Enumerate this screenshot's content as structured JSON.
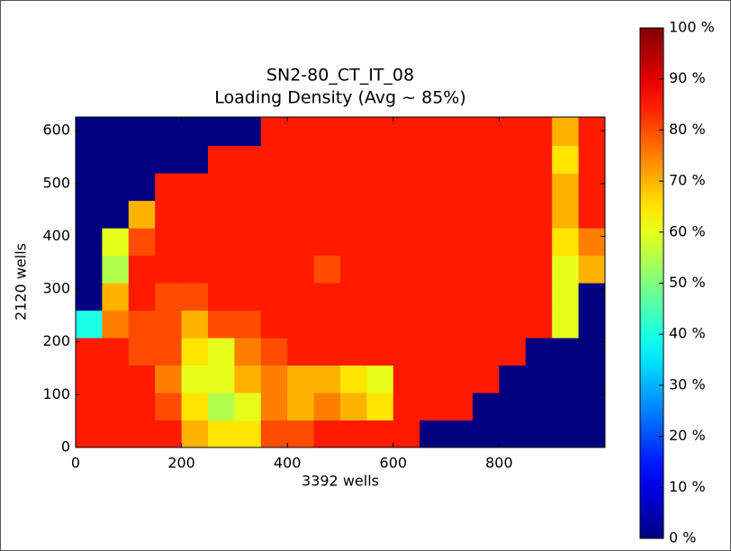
{
  "chart_data": {
    "type": "heatmap",
    "title": [
      "SN2-80_CT_IT_08",
      "Loading Density (Avg ~ 85%)"
    ],
    "x_label": "3392 wells",
    "y_label": "2120 wells",
    "colormap": "jet",
    "xlim": [
      0,
      1000
    ],
    "ylim": [
      0,
      626
    ],
    "xticks": [
      0,
      200,
      400,
      600,
      800
    ],
    "yticks": [
      0,
      100,
      200,
      300,
      400,
      500,
      600
    ],
    "x_bins": [
      0,
      50,
      100,
      150,
      200,
      250,
      300,
      350,
      400,
      450,
      500,
      550,
      600,
      650,
      700,
      750,
      800,
      850,
      900,
      950,
      1000
    ],
    "y_bins": [
      0,
      52,
      104,
      156,
      208,
      260,
      312,
      364,
      416,
      468,
      520,
      572,
      626
    ],
    "z": [
      [
        85,
        85,
        85,
        85,
        70,
        65,
        65,
        80,
        80,
        85,
        85,
        85,
        85,
        0,
        0,
        0,
        0,
        0,
        0,
        0
      ],
      [
        85,
        85,
        85,
        80,
        65,
        55,
        60,
        75,
        70,
        75,
        70,
        65,
        85,
        85,
        85,
        0,
        0,
        0,
        0,
        0
      ],
      [
        85,
        85,
        85,
        75,
        60,
        60,
        70,
        75,
        70,
        70,
        65,
        60,
        85,
        85,
        85,
        85,
        0,
        0,
        0,
        0
      ],
      [
        85,
        85,
        80,
        80,
        65,
        60,
        75,
        80,
        85,
        85,
        85,
        85,
        85,
        85,
        85,
        85,
        85,
        0,
        0,
        0
      ],
      [
        40,
        75,
        80,
        80,
        70,
        80,
        80,
        85,
        85,
        85,
        85,
        85,
        85,
        85,
        85,
        85,
        85,
        85,
        60,
        0
      ],
      [
        0,
        70,
        85,
        80,
        80,
        85,
        85,
        85,
        85,
        85,
        85,
        85,
        85,
        85,
        85,
        85,
        85,
        85,
        60,
        0
      ],
      [
        0,
        55,
        85,
        85,
        85,
        85,
        85,
        85,
        85,
        80,
        85,
        85,
        85,
        85,
        85,
        85,
        85,
        85,
        60,
        70
      ],
      [
        0,
        60,
        80,
        85,
        85,
        85,
        85,
        85,
        85,
        85,
        85,
        85,
        85,
        85,
        85,
        85,
        85,
        85,
        65,
        75
      ],
      [
        0,
        0,
        70,
        85,
        85,
        85,
        85,
        85,
        85,
        85,
        85,
        85,
        85,
        85,
        85,
        85,
        85,
        85,
        70,
        85
      ],
      [
        0,
        0,
        0,
        85,
        85,
        85,
        85,
        85,
        85,
        85,
        85,
        85,
        85,
        85,
        85,
        85,
        85,
        85,
        70,
        85
      ],
      [
        0,
        0,
        0,
        0,
        0,
        85,
        85,
        85,
        85,
        85,
        85,
        85,
        85,
        85,
        85,
        85,
        85,
        85,
        65,
        85
      ],
      [
        0,
        0,
        0,
        0,
        0,
        0,
        0,
        85,
        85,
        85,
        85,
        85,
        85,
        85,
        85,
        85,
        85,
        85,
        70,
        85
      ]
    ],
    "clim": [
      0,
      100
    ],
    "cticks": [
      {
        "value": 0,
        "label": "0 %"
      },
      {
        "value": 10,
        "label": "10 %"
      },
      {
        "value": 20,
        "label": "20 %"
      },
      {
        "value": 30,
        "label": "30 %"
      },
      {
        "value": 40,
        "label": "40 %"
      },
      {
        "value": 50,
        "label": "50 %"
      },
      {
        "value": 60,
        "label": "60 %"
      },
      {
        "value": 70,
        "label": "70 %"
      },
      {
        "value": 80,
        "label": "80 %"
      },
      {
        "value": 90,
        "label": "90 %"
      },
      {
        "value": 100,
        "label": "100 %"
      }
    ]
  }
}
